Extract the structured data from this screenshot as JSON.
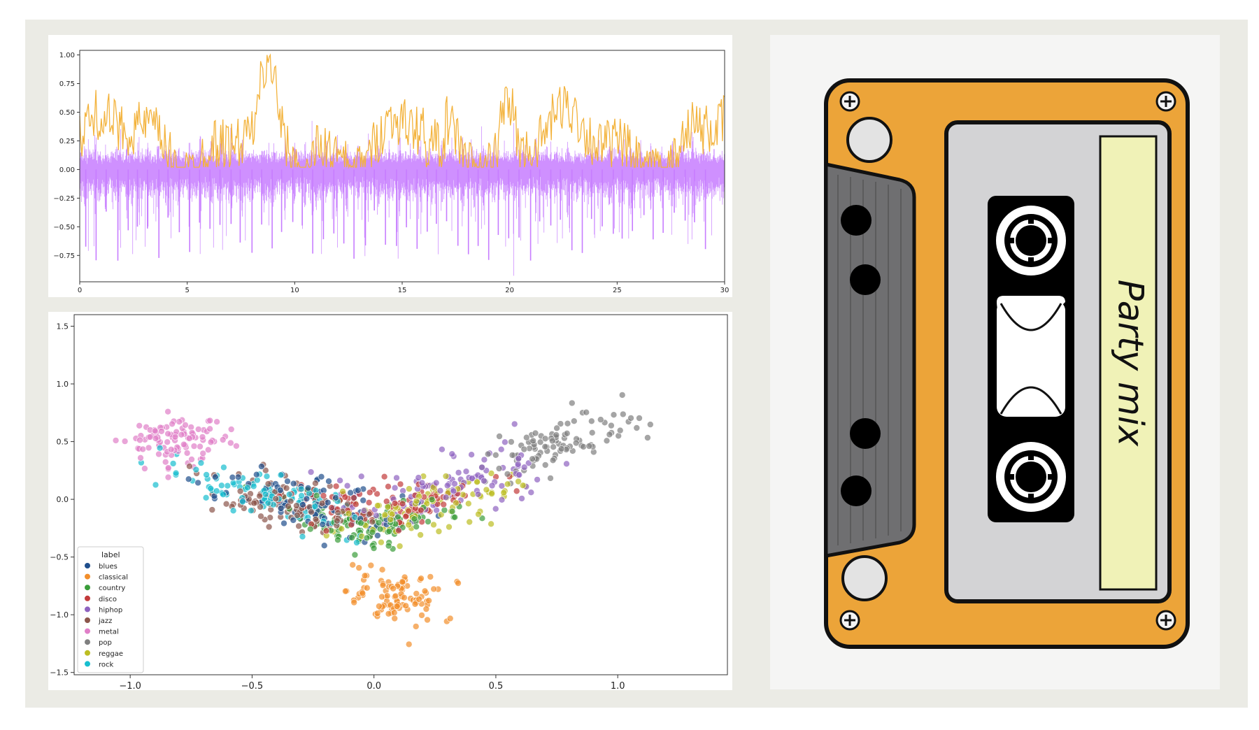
{
  "colors": {
    "frame_bg": "#ebebe5",
    "waveform": "#c77dff",
    "envelope": "#f3b33d",
    "cassette_body": "#eca439",
    "cassette_label": "#f0f2b7"
  },
  "chart_data": [
    {
      "type": "line",
      "title": "",
      "xlabel": "",
      "ylabel": "",
      "xlim": [
        0,
        30
      ],
      "ylim": [
        -0.98,
        1.04
      ],
      "x_ticks": [
        "0",
        "5",
        "10",
        "15",
        "20",
        "25",
        "30"
      ],
      "y_ticks": [
        "1.00",
        "0.75",
        "0.50",
        "0.25",
        "0.00",
        "−0.25",
        "−0.50",
        "−0.75"
      ],
      "grid": false,
      "series": [
        {
          "kind": "waveform",
          "color": "#c77dff"
        },
        {
          "kind": "envelope",
          "color": "#f3b33d"
        }
      ]
    },
    {
      "type": "scatter",
      "title": "",
      "xlabel": "",
      "ylabel": "",
      "xlim": [
        -1.23,
        1.45
      ],
      "ylim": [
        -1.52,
        1.6
      ],
      "x_ticks": [
        "−1.0",
        "−0.5",
        "0.0",
        "0.5",
        "1.0"
      ],
      "y_ticks": [
        "1.5",
        "1.0",
        "0.5",
        "0.0",
        "−0.5",
        "−1.0",
        "−1.5"
      ],
      "grid": false,
      "legend_placement": "bottom-left",
      "legend_title": "label",
      "series": [
        {
          "name": "blues",
          "color": "#1f4e8c",
          "center": [
            -0.25,
            -0.05
          ],
          "spread": [
            0.42,
            0.38
          ]
        },
        {
          "name": "classical",
          "color": "#f28e2b",
          "center": [
            0.1,
            -0.85
          ],
          "spread": [
            0.2,
            0.25
          ]
        },
        {
          "name": "country",
          "color": "#3a9d3a",
          "center": [
            -0.05,
            -0.2
          ],
          "spread": [
            0.35,
            0.3
          ]
        },
        {
          "name": "disco",
          "color": "#c23b3b",
          "center": [
            0.05,
            0.05
          ],
          "spread": [
            0.4,
            0.35
          ]
        },
        {
          "name": "hiphop",
          "color": "#8e62c0",
          "center": [
            0.3,
            0.2
          ],
          "spread": [
            0.45,
            0.4
          ]
        },
        {
          "name": "jazz",
          "color": "#8c564b",
          "center": [
            -0.35,
            -0.1
          ],
          "spread": [
            0.35,
            0.35
          ]
        },
        {
          "name": "metal",
          "color": "#e07fc8",
          "center": [
            -0.8,
            0.5
          ],
          "spread": [
            0.2,
            0.2
          ]
        },
        {
          "name": "pop",
          "color": "#7f7f7f",
          "center": [
            0.75,
            0.4
          ],
          "spread": [
            0.3,
            0.35
          ]
        },
        {
          "name": "reggae",
          "color": "#bcbd22",
          "center": [
            0.25,
            -0.05
          ],
          "spread": [
            0.35,
            0.35
          ]
        },
        {
          "name": "rock",
          "color": "#17becf",
          "center": [
            -0.45,
            -0.05
          ],
          "spread": [
            0.4,
            0.35
          ]
        }
      ]
    }
  ],
  "cassette": {
    "label_text": "Party mix"
  }
}
